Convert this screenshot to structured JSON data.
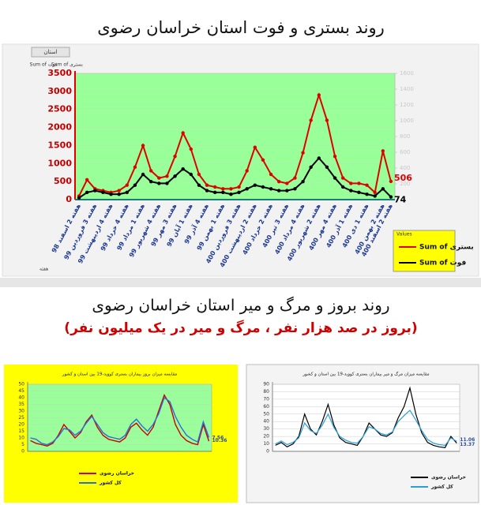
{
  "header": {
    "title": "روند بستری و فوت استان خراسان رضوی",
    "subtitle": "روند بروز و مرگ و میر استان خراسان رضوی",
    "note": "(بروز در صد هزار نفر ، مرگ و میر در یک میلیون نفر)"
  },
  "ui": {
    "filter": "استان",
    "field_a": "Sum of فوت",
    "field_b": "Sum of بستری",
    "values_label": "Values",
    "axis_field": "هفته"
  },
  "chart_data": [
    {
      "type": "line",
      "background": "#99ff99",
      "ylim": [
        0,
        3500
      ],
      "yticks": [
        0,
        500,
        1000,
        1500,
        2000,
        2500,
        3000,
        3500
      ],
      "y2lim": [
        0,
        1600
      ],
      "y2ticks": [
        200,
        400,
        600,
        800,
        1000,
        1200,
        1400,
        1600
      ],
      "categories": [
        "هفته 2 اسفند 98",
        null,
        "هفته 3 فروردین 99",
        null,
        "هفته 4 اردیبهشت 99",
        null,
        "هفته 4 خرداد 99",
        null,
        "هفته 1 مرداد 99",
        null,
        "هفته 4 شهریور 99",
        null,
        "هفته 3 مهر 99",
        null,
        "هفته 1 آبان 99",
        null,
        "هفته 4 آذر 99",
        null,
        "هفته 1 بهمن 99",
        null,
        "هفته 3 فروردین 400",
        null,
        "هفته 2 اردیبهشت 400",
        null,
        "هفته 2 خرداد 400",
        null,
        "هفته 3 تیر 400",
        null,
        "هفته 4 مرداد 400",
        null,
        "هفته 2 شهریور 400",
        null,
        "هفته 4 مهر 400",
        null,
        "هفته 1 آذر 400",
        null,
        "هفته 1 دی 400",
        null,
        "هفته 2 بهمن 400",
        "هفته 2 اسفند 400"
      ],
      "series": [
        {
          "name": "Sum of بستری",
          "color": "#e00000",
          "values": [
            100,
            550,
            300,
            250,
            200,
            250,
            400,
            900,
            1500,
            800,
            600,
            650,
            1200,
            1850,
            1400,
            700,
            400,
            350,
            300,
            300,
            350,
            800,
            1450,
            1100,
            700,
            500,
            450,
            600,
            1300,
            2200,
            2900,
            2200,
            1200,
            600,
            450,
            450,
            400,
            200,
            1350,
            506
          ]
        },
        {
          "name": "Sum of فوت",
          "color": "#000000",
          "values": [
            50,
            200,
            250,
            200,
            150,
            150,
            200,
            400,
            700,
            500,
            450,
            450,
            650,
            850,
            700,
            400,
            250,
            200,
            200,
            150,
            200,
            300,
            400,
            350,
            300,
            250,
            250,
            300,
            500,
            900,
            1150,
            900,
            600,
            350,
            250,
            200,
            150,
            100,
            300,
            74
          ]
        }
      ]
    },
    {
      "type": "line",
      "title": "مقایسه میزان بروز بیماران بستری کووید-19 بین استان و کشور",
      "background": "#99ff99",
      "ylim": [
        0,
        50
      ],
      "yticks": [
        0,
        5,
        10,
        15,
        20,
        25,
        30,
        35,
        40,
        45,
        50
      ],
      "series": [
        {
          "name": "خراسان رضوی",
          "color": "#d00000",
          "values": [
            8,
            6,
            5,
            4,
            6,
            12,
            20,
            15,
            10,
            14,
            22,
            27,
            18,
            12,
            9,
            8,
            7,
            10,
            18,
            21,
            16,
            12,
            18,
            30,
            42,
            35,
            20,
            12,
            8,
            6,
            5,
            20,
            7.56
          ]
        },
        {
          "name": "کل کشور",
          "color": "#2a6fd6",
          "values": [
            10,
            9,
            6,
            5,
            7,
            11,
            17,
            16,
            12,
            15,
            21,
            26,
            20,
            14,
            11,
            10,
            9,
            12,
            20,
            24,
            19,
            15,
            20,
            28,
            40,
            37,
            26,
            18,
            12,
            9,
            7,
            22,
            10.36
          ]
        }
      ]
    },
    {
      "type": "line",
      "title": "مقایسه میزان مرگ و میر بیماران بستری کووید-19 بین استان و کشور",
      "background": "#ffffff",
      "ylim": [
        0,
        90
      ],
      "yticks": [
        0,
        10,
        20,
        30,
        40,
        50,
        60,
        70,
        80,
        90
      ],
      "series": [
        {
          "name": "خراسان رضوی",
          "color": "#000000",
          "values": [
            8,
            12,
            6,
            10,
            20,
            50,
            30,
            22,
            40,
            63,
            35,
            18,
            12,
            10,
            8,
            20,
            38,
            30,
            22,
            20,
            25,
            45,
            60,
            85,
            50,
            25,
            12,
            8,
            6,
            5,
            20,
            11.06
          ]
        },
        {
          "name": "کل کشور",
          "color": "#2a9fd6",
          "values": [
            10,
            14,
            9,
            12,
            18,
            38,
            28,
            24,
            35,
            50,
            32,
            20,
            15,
            12,
            11,
            20,
            33,
            30,
            24,
            22,
            26,
            40,
            48,
            55,
            42,
            28,
            16,
            11,
            9,
            8,
            18,
            13.37
          ]
        }
      ]
    }
  ]
}
